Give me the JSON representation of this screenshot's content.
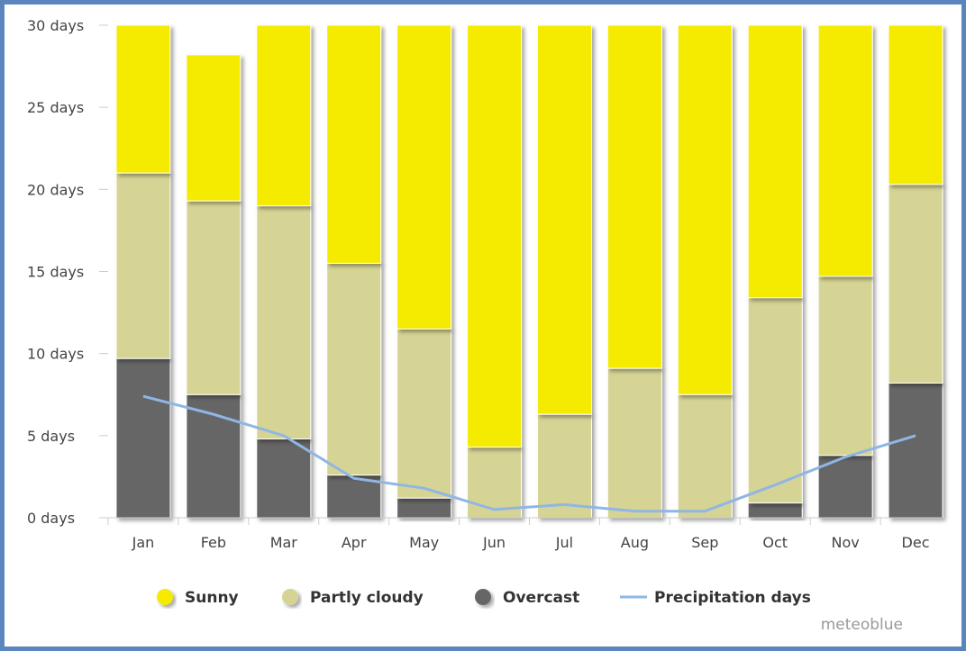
{
  "chart_data": {
    "type": "bar",
    "stacked": true,
    "categories": [
      "Jan",
      "Feb",
      "Mar",
      "Apr",
      "May",
      "Jun",
      "Jul",
      "Aug",
      "Sep",
      "Oct",
      "Nov",
      "Dec"
    ],
    "series": [
      {
        "name": "Overcast",
        "color": "#666666",
        "values": [
          9.7,
          7.5,
          4.8,
          2.6,
          1.2,
          0,
          0,
          0,
          0,
          0.9,
          3.8,
          8.2
        ]
      },
      {
        "name": "Partly cloudy",
        "color": "#d6d494",
        "values": [
          11.3,
          11.8,
          14.2,
          12.9,
          10.3,
          4.3,
          6.3,
          9.1,
          7.5,
          12.5,
          10.9,
          12.1
        ]
      },
      {
        "name": "Sunny",
        "color": "#f5eb00",
        "values": [
          9.0,
          8.9,
          11.0,
          14.5,
          18.5,
          25.7,
          23.7,
          20.9,
          22.5,
          16.6,
          15.3,
          9.7
        ]
      }
    ],
    "line_series": {
      "name": "Precipitation days",
      "color": "#8fb6e4",
      "values": [
        7.4,
        6.3,
        5.0,
        2.4,
        1.8,
        0.5,
        0.8,
        0.4,
        0.4,
        2.0,
        3.7,
        5.0
      ]
    },
    "yticks": [
      "0 days",
      "5 days",
      "10 days",
      "15 days",
      "20 days",
      "25 days",
      "30 days"
    ],
    "ylim": [
      0,
      30
    ],
    "grid": false,
    "legend_position": "bottom",
    "credit": "meteoblue"
  },
  "legend": {
    "sunny": "Sunny",
    "partly_cloudy": "Partly cloudy",
    "overcast": "Overcast",
    "precipitation": "Precipitation days"
  },
  "credit": "meteoblue"
}
